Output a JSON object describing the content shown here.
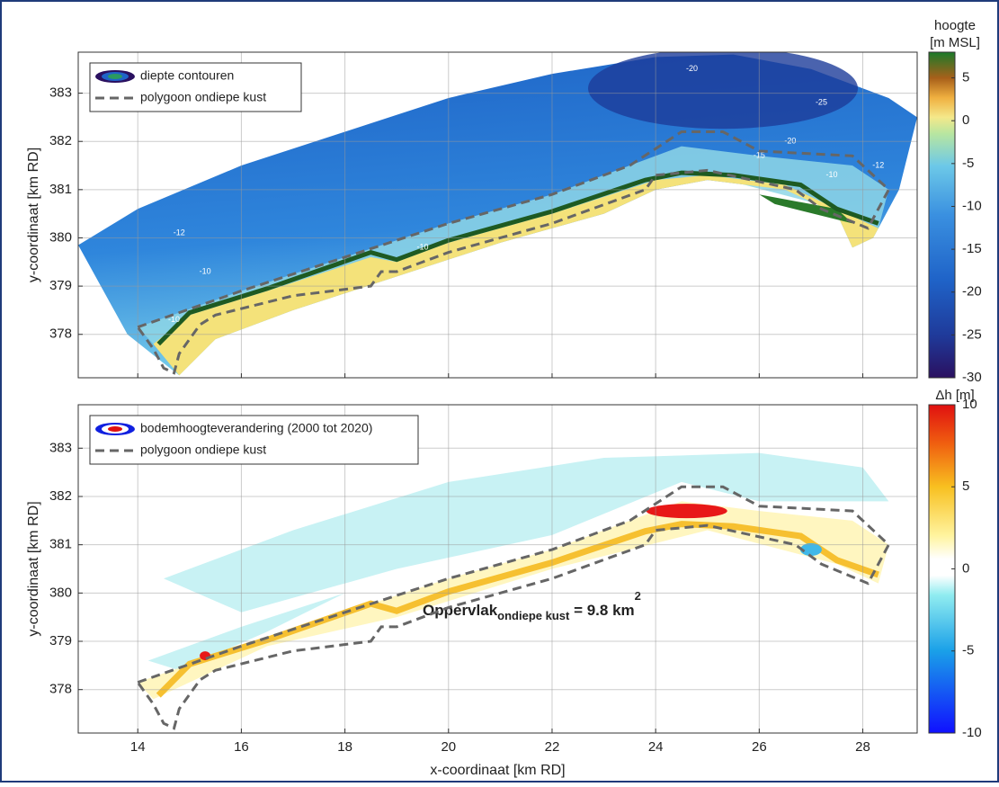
{
  "chart_data": [
    {
      "type": "contour",
      "ylabel": "y-coordinaat [km RD]",
      "xlim": [
        12.85,
        29.05
      ],
      "ylim": [
        377.1,
        383.85
      ],
      "xticks": [
        14,
        16,
        18,
        20,
        22,
        24,
        26,
        28
      ],
      "yticks": [
        378,
        379,
        380,
        381,
        382,
        383
      ],
      "xticklabels": false,
      "grid": true,
      "legend": [
        "diepte contouren",
        "polygoon ondiepe kust"
      ],
      "contour_labels": [
        -20,
        -25,
        -20,
        -15,
        -10,
        -12,
        -12,
        -10,
        -10,
        -10
      ],
      "colorbar": {
        "title": [
          "hoogte",
          "[m MSL]"
        ],
        "lim": [
          -30,
          8
        ],
        "ticks": [
          5,
          0,
          -5,
          -10,
          -15,
          -20,
          -25,
          -30
        ]
      },
      "polygon": {
        "x": [
          14,
          16,
          18,
          20,
          22,
          23.5,
          24.5,
          25.3,
          26,
          27.8,
          28.5,
          28.1,
          27.2,
          26.7,
          25,
          24,
          23.8,
          22,
          20,
          19,
          18.7,
          18.5,
          17,
          15.5,
          15.2,
          14.8,
          14.7,
          14.5,
          14.3,
          14
        ],
        "y": [
          378.15,
          378.9,
          379.6,
          380.3,
          380.9,
          381.5,
          382.2,
          382.2,
          381.8,
          381.7,
          381.0,
          380.2,
          380.6,
          381.0,
          381.4,
          381.3,
          381.0,
          380.3,
          379.7,
          379.3,
          379.3,
          379.0,
          378.8,
          378.4,
          378.2,
          377.6,
          377.2,
          377.3,
          377.7,
          378.15
        ]
      }
    },
    {
      "type": "contour",
      "xlabel": "x-coordinaat [km RD]",
      "ylabel": "y-coordinaat [km RD]",
      "xlim": [
        12.85,
        29.05
      ],
      "ylim": [
        377.1,
        383.9
      ],
      "xticks": [
        14,
        16,
        18,
        20,
        22,
        24,
        26,
        28
      ],
      "yticks": [
        378,
        379,
        380,
        381,
        382,
        383
      ],
      "xticklabels": true,
      "grid": true,
      "legend": [
        "bodemhoogteverandering (2000 tot 2020)",
        "polygoon ondiepe kust"
      ],
      "annotation": [
        "Oppervlak",
        "ondiepe kust",
        " = 9.8 km",
        "2"
      ],
      "colorbar": {
        "title": [
          "Δh [m]"
        ],
        "lim": [
          -10,
          10
        ],
        "ticks": [
          10,
          5,
          0,
          -5,
          -10
        ]
      },
      "polygon": {
        "x": [
          14,
          16,
          18,
          20,
          22,
          23.5,
          24.5,
          25.3,
          26,
          27.8,
          28.5,
          28.1,
          27.2,
          26.7,
          25,
          24,
          23.8,
          22,
          20,
          19,
          18.7,
          18.5,
          17,
          15.5,
          15.2,
          14.8,
          14.7,
          14.5,
          14.3,
          14
        ],
        "y": [
          378.15,
          378.9,
          379.6,
          380.3,
          380.9,
          381.5,
          382.2,
          382.2,
          381.8,
          381.7,
          381.0,
          380.2,
          380.6,
          381.0,
          381.4,
          381.3,
          381.0,
          380.3,
          379.7,
          379.3,
          379.3,
          379.0,
          378.8,
          378.4,
          378.2,
          377.6,
          377.2,
          377.3,
          377.7,
          378.15
        ]
      }
    }
  ]
}
